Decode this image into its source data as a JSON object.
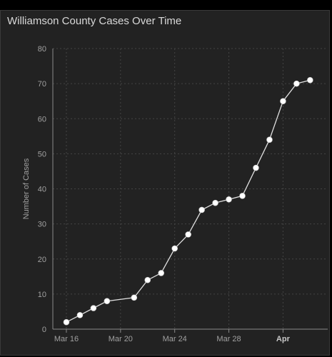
{
  "title": "Williamson County Cases Over Time",
  "colors": {
    "background": "#222222",
    "line": "#e0e0e0",
    "marker": "#ffffff",
    "grid": "#444444",
    "axis": "#8a8a8a"
  },
  "chart_data": {
    "type": "line",
    "title": "Williamson County Cases Over Time",
    "xlabel": "",
    "ylabel": "Number of Cases",
    "ylim": [
      0,
      80
    ],
    "yticks": [
      0,
      10,
      20,
      30,
      40,
      50,
      60,
      70,
      80
    ],
    "x_tick_labels": [
      {
        "day": 16,
        "label": "Mar 16",
        "bold": false
      },
      {
        "day": 20,
        "label": "Mar 20",
        "bold": false
      },
      {
        "day": 24,
        "label": "Mar 24",
        "bold": false
      },
      {
        "day": 28,
        "label": "Mar 28",
        "bold": false
      },
      {
        "day": 32,
        "label": "Apr",
        "bold": true
      }
    ],
    "xlim": [
      15,
      35.3
    ],
    "grid": true,
    "legend": "none",
    "series": [
      {
        "x": [
          16,
          17,
          18,
          19,
          21,
          22,
          23,
          24,
          25,
          26,
          27,
          28,
          29,
          30,
          31,
          32,
          33,
          34
        ],
        "y": [
          2,
          4,
          6,
          8,
          9,
          14,
          16,
          23,
          27,
          34,
          36,
          37,
          38,
          46,
          54,
          65,
          70,
          71
        ]
      }
    ]
  }
}
